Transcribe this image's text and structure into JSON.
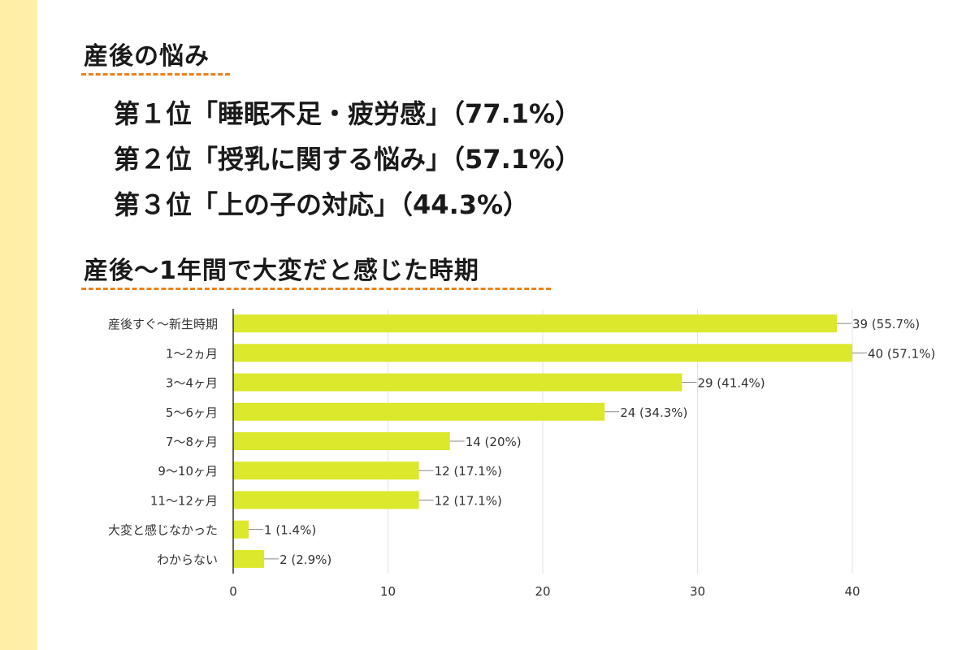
{
  "section1": {
    "title": "産後の悩み",
    "rankings": [
      {
        "rank": "第１位",
        "item": "「睡眠不足・疲労感」",
        "pct": "（77.1%）"
      },
      {
        "rank": "第２位",
        "item": "「授乳に関する悩み」",
        "pct": "（57.1%）"
      },
      {
        "rank": "第３位",
        "item": "「上の子の対応」",
        "pct": "（44.3%）"
      }
    ]
  },
  "section2": {
    "title": "産後〜1年間で大変だと感じた時期"
  },
  "colors": {
    "accent_underline": "#e8821e",
    "side_strip": "#fdf0a6",
    "bar": "#dce82c"
  },
  "chart_data": {
    "type": "bar",
    "orientation": "horizontal",
    "categories": [
      "産後すぐ〜新生時期",
      "1〜2ヵ月",
      "3〜4ヶ月",
      "5〜6ヶ月",
      "7〜8ヶ月",
      "9〜10ヶ月",
      "11〜12ヶ月",
      "大変と感じなかった",
      "わからない"
    ],
    "values": [
      39,
      40,
      29,
      24,
      14,
      12,
      12,
      1,
      2
    ],
    "data_labels": [
      "39 (55.7%)",
      "40 (57.1%)",
      "29 (41.4%)",
      "24 (34.3%)",
      "14 (20%)",
      "12 (17.1%)",
      "12 (17.1%)",
      "1 (1.4%)",
      "2 (2.9%)"
    ],
    "xlim": [
      0,
      40
    ],
    "xticks": [
      0,
      10,
      20,
      30,
      40
    ],
    "grid": true
  }
}
